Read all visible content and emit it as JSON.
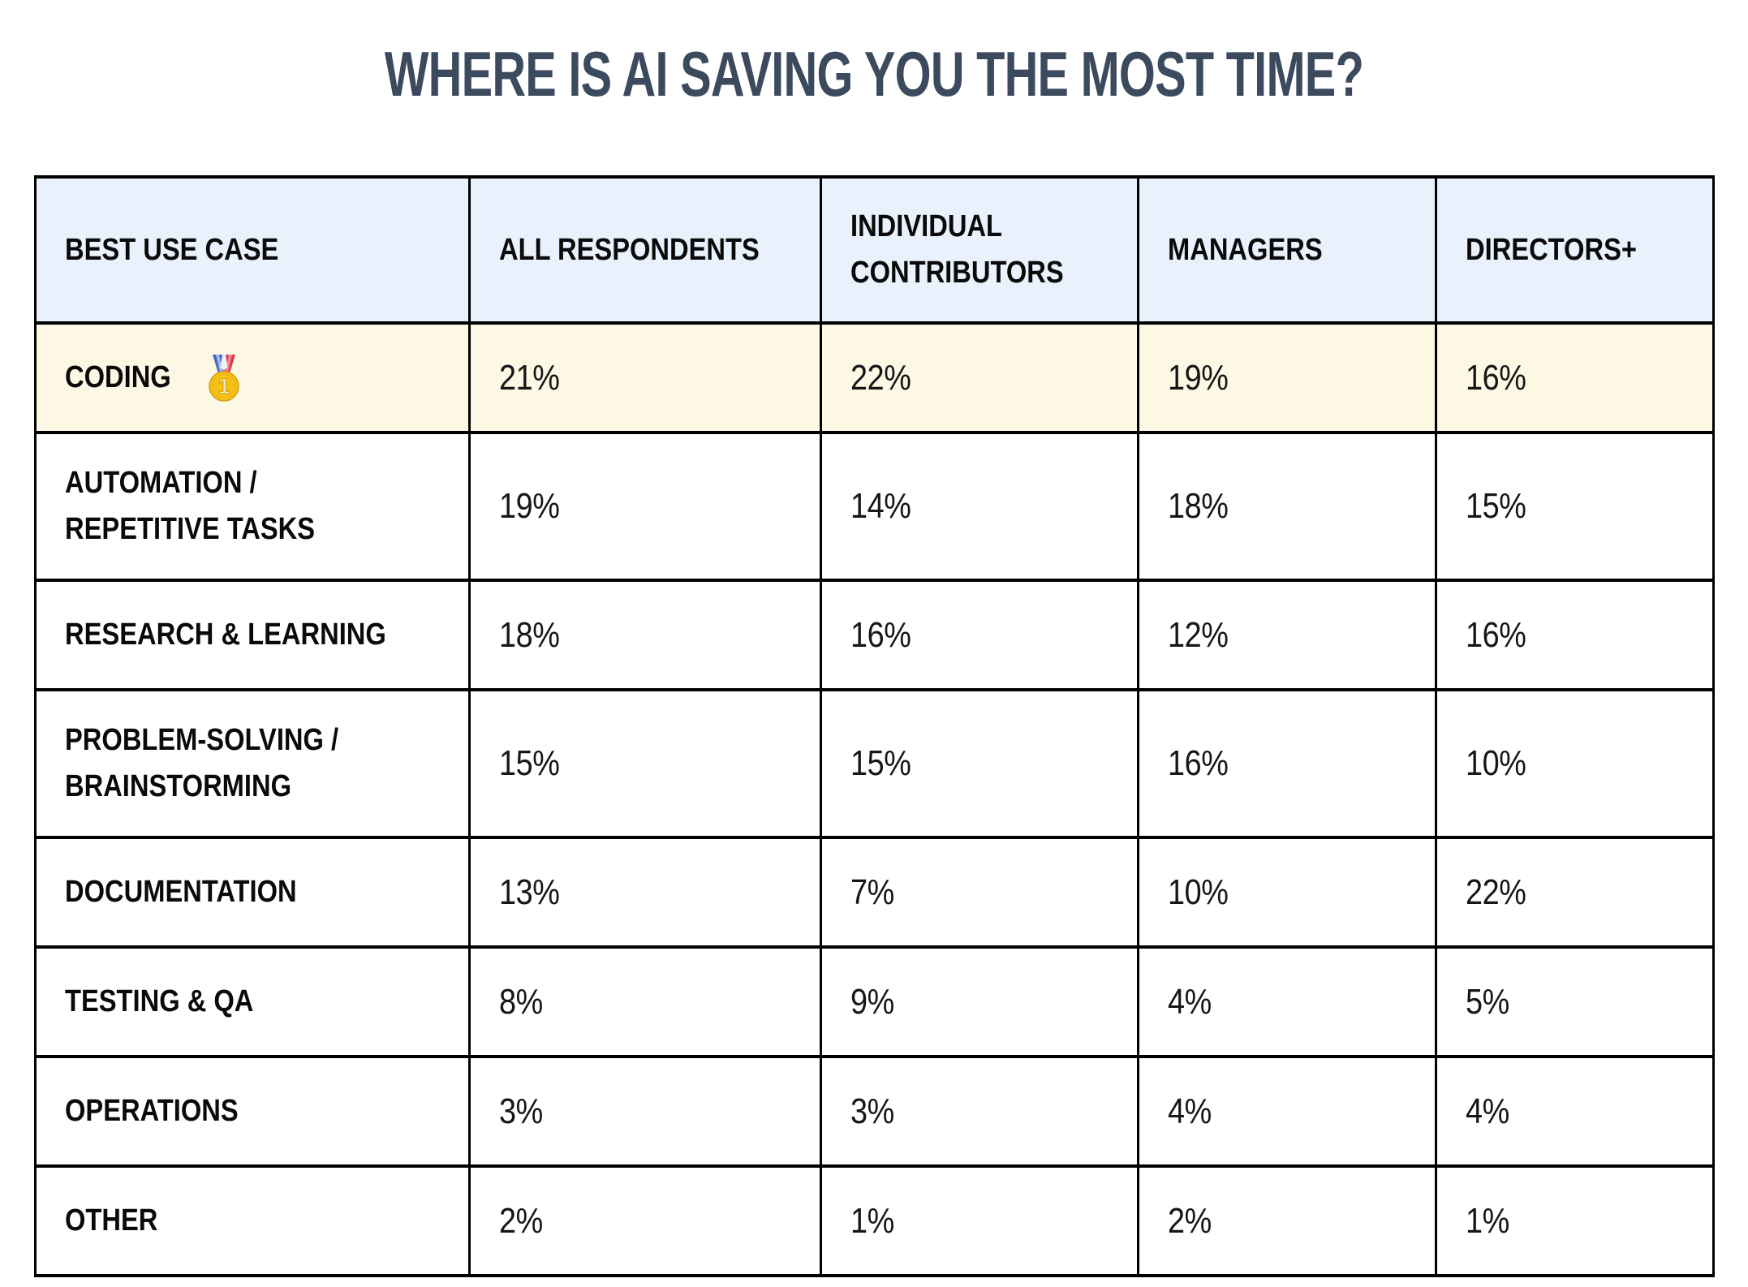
{
  "colors": {
    "title_text": "#3c4a5e",
    "header_row_bg": "#e9f1fd",
    "highlight_row_bg": "#fdf8e4",
    "table_border": "#000000",
    "cell_text": "#0a0a0a",
    "medal_gold": "#f6c117",
    "ribbon_blue": "#4167c8",
    "ribbon_red": "#dd3a4a"
  },
  "icons": {
    "first-place-medal": "🥇"
  },
  "chart_data": {
    "type": "table",
    "title": "WHERE IS AI SAVING YOU THE MOST TIME?",
    "columns": [
      {
        "id": "best-use-case",
        "lines": [
          "BEST USE CASE"
        ]
      },
      {
        "id": "all-respondents",
        "lines": [
          "ALL RESPONDENTS"
        ]
      },
      {
        "id": "individual-contributors",
        "lines": [
          "INDIVIDUAL",
          "CONTRIBUTORS"
        ]
      },
      {
        "id": "managers",
        "lines": [
          "MANAGERS"
        ]
      },
      {
        "id": "directors-plus",
        "lines": [
          "DIRECTORS+"
        ]
      }
    ],
    "rows": [
      {
        "label_lines": [
          "CODING"
        ],
        "medal": "first-place-medal",
        "highlight": true,
        "values": [
          "21%",
          "22%",
          "19%",
          "16%"
        ]
      },
      {
        "label_lines": [
          "AUTOMATION /",
          "REPETITIVE TASKS"
        ],
        "highlight": false,
        "values": [
          "19%",
          "14%",
          "18%",
          "15%"
        ]
      },
      {
        "label_lines": [
          "RESEARCH & LEARNING"
        ],
        "highlight": false,
        "values": [
          "18%",
          "16%",
          "12%",
          "16%"
        ]
      },
      {
        "label_lines": [
          "PROBLEM-SOLVING /",
          "BRAINSTORMING"
        ],
        "highlight": false,
        "values": [
          "15%",
          "15%",
          "16%",
          "10%"
        ]
      },
      {
        "label_lines": [
          "DOCUMENTATION"
        ],
        "highlight": false,
        "values": [
          "13%",
          "7%",
          "10%",
          "22%"
        ]
      },
      {
        "label_lines": [
          "TESTING & QA"
        ],
        "highlight": false,
        "values": [
          "8%",
          "9%",
          "4%",
          "5%"
        ]
      },
      {
        "label_lines": [
          "OPERATIONS"
        ],
        "highlight": false,
        "values": [
          "3%",
          "3%",
          "4%",
          "4%"
        ]
      },
      {
        "label_lines": [
          "OTHER"
        ],
        "highlight": false,
        "values": [
          "2%",
          "1%",
          "2%",
          "1%"
        ]
      }
    ]
  }
}
